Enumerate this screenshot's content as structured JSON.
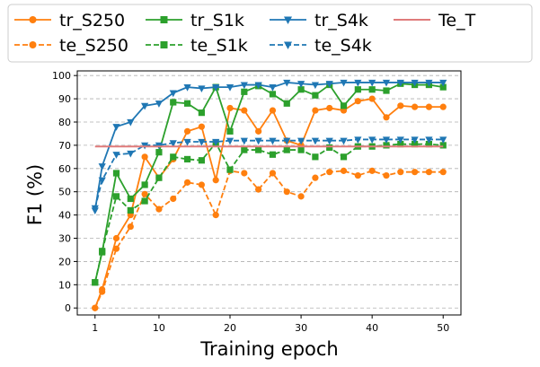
{
  "chart_data": {
    "type": "line",
    "title": "",
    "xlabel": "Training epoch",
    "ylabel": "F1 (%)",
    "xlim": [
      -1.5,
      52.5
    ],
    "ylim": [
      -3,
      102
    ],
    "xticks": [
      1,
      10,
      20,
      30,
      40,
      50
    ],
    "xtick_labels": [
      "1",
      "10",
      "20",
      "30",
      "40",
      "50"
    ],
    "yticks": [
      0,
      10,
      20,
      30,
      40,
      50,
      60,
      70,
      80,
      90,
      100
    ],
    "ytick_labels": [
      "0",
      "10",
      "20",
      "30",
      "40",
      "50",
      "60",
      "70",
      "80",
      "90",
      "100"
    ],
    "grid": "horizontal dashed",
    "legend_position": "top, outside plot, 4 columns",
    "x": [
      1,
      2,
      4,
      6,
      8,
      10,
      12,
      14,
      16,
      18,
      20,
      22,
      24,
      26,
      28,
      30,
      32,
      34,
      36,
      38,
      40,
      42,
      44,
      46,
      48,
      50
    ],
    "series": [
      {
        "name": "tr_S250",
        "color": "#ff7f0e",
        "style": "solid",
        "marker": "circle",
        "values": [
          0,
          8,
          30,
          40,
          65,
          56,
          64,
          76,
          78,
          55,
          86,
          85,
          76,
          85,
          72,
          70,
          85,
          86,
          85,
          89,
          90,
          82,
          87,
          86.5,
          86.5,
          86.5
        ]
      },
      {
        "name": "te_S250",
        "color": "#ff7f0e",
        "style": "dashed",
        "marker": "circle",
        "values": [
          0,
          7,
          25.5,
          35,
          49,
          42.5,
          47,
          54,
          53,
          40,
          59,
          58,
          51,
          58,
          50,
          48,
          56,
          58.5,
          59,
          57,
          59,
          57,
          58.5,
          58.5,
          58.5,
          58.5
        ]
      },
      {
        "name": "tr_S1k",
        "color": "#2ca02c",
        "style": "solid",
        "marker": "square",
        "values": [
          11,
          24,
          58,
          47,
          53,
          67,
          88.5,
          88,
          84,
          95,
          76,
          93,
          95.5,
          92,
          88,
          94,
          91.5,
          96,
          87,
          94,
          94,
          93.5,
          96.5,
          96,
          96,
          95
        ]
      },
      {
        "name": "te_S1k",
        "color": "#2ca02c",
        "style": "dashed",
        "marker": "square",
        "values": [
          11,
          24.5,
          48,
          42,
          46,
          56,
          65,
          64,
          63.5,
          71,
          59.5,
          68,
          68,
          66,
          68,
          68,
          65,
          69,
          65,
          69.5,
          69.5,
          70,
          70.5,
          70.5,
          70.5,
          70
        ]
      },
      {
        "name": "tr_S4k",
        "color": "#1f77b4",
        "style": "solid",
        "marker": "triangle-down",
        "values": [
          42,
          61,
          78,
          80,
          87,
          88,
          92.5,
          95,
          94.5,
          95,
          95,
          96,
          96,
          95,
          97,
          96.5,
          96,
          96.5,
          97,
          97,
          97,
          97,
          97,
          97,
          97,
          97
        ]
      },
      {
        "name": "te_S4k",
        "color": "#1f77b4",
        "style": "dashed",
        "marker": "triangle-down",
        "values": [
          43,
          55,
          66,
          66.5,
          70,
          70,
          71,
          71.5,
          71.5,
          71.5,
          72,
          72,
          72,
          72,
          72,
          72,
          72,
          72,
          72,
          72.5,
          72.5,
          72.5,
          72.5,
          72.5,
          72.5,
          72.5
        ]
      },
      {
        "name": "Te_T",
        "color": "#e07b7b",
        "style": "solid",
        "marker": "none",
        "x": [
          1,
          50
        ],
        "values": [
          69.5,
          69.5
        ]
      }
    ]
  }
}
